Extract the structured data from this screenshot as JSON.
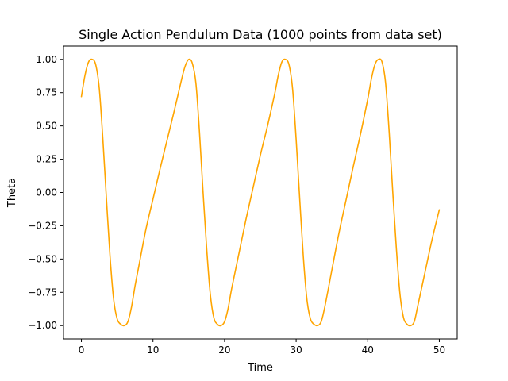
{
  "chart_data": {
    "type": "line",
    "title": "Single Action Pendulum Data (1000 points from data set)",
    "xlabel": "Time",
    "ylabel": "Theta",
    "xlim": [
      -2.5,
      52.5
    ],
    "ylim": [
      -1.1,
      1.1
    ],
    "x_ticks": [
      0,
      10,
      20,
      30,
      40,
      50
    ],
    "y_ticks": [
      -1.0,
      -0.75,
      -0.5,
      -0.25,
      0.0,
      0.25,
      0.5,
      0.75,
      1.0
    ],
    "x_tick_labels": [
      "0",
      "10",
      "20",
      "30",
      "40",
      "50"
    ],
    "y_tick_labels": [
      "−1.00",
      "−0.75",
      "−0.50",
      "−0.25",
      "0.00",
      "0.25",
      "0.50",
      "0.75",
      "1.00"
    ],
    "grid": false,
    "series": [
      {
        "color": "#ffa500",
        "x": [
          0,
          0.5,
          1.0,
          1.5,
          2.0,
          2.5,
          3.0,
          3.5,
          4.0,
          4.5,
          5.0,
          5.5,
          6.0,
          6.5,
          7.0,
          7.5,
          8.0,
          9.0,
          10.0,
          11.0,
          12.0,
          13.0,
          14.0,
          14.5,
          15.0,
          15.5,
          16.0,
          16.5,
          17.0,
          17.5,
          18.0,
          18.5,
          19.0,
          19.5,
          20.0,
          20.5,
          21.0,
          22.0,
          23.0,
          24.0,
          25.0,
          26.0,
          27.0,
          27.5,
          28.0,
          28.5,
          29.0,
          29.5,
          30.0,
          30.5,
          31.0,
          31.5,
          32.0,
          32.5,
          33.0,
          33.5,
          34.0,
          35.0,
          36.0,
          37.0,
          38.0,
          39.0,
          40.0,
          40.5,
          41.0,
          41.5,
          42.0,
          42.5,
          43.0,
          43.5,
          44.0,
          44.5,
          45.0,
          45.5,
          46.0,
          46.5,
          47.0,
          48.0,
          49.0,
          50.0
        ],
        "y": [
          0.72,
          0.88,
          0.98,
          1.0,
          0.96,
          0.78,
          0.4,
          -0.05,
          -0.48,
          -0.8,
          -0.95,
          -0.99,
          -1.0,
          -0.97,
          -0.86,
          -0.7,
          -0.56,
          -0.28,
          -0.05,
          0.18,
          0.4,
          0.62,
          0.85,
          0.95,
          1.0,
          0.97,
          0.82,
          0.45,
          0.0,
          -0.42,
          -0.76,
          -0.94,
          -0.99,
          -1.0,
          -0.97,
          -0.87,
          -0.72,
          -0.46,
          -0.2,
          0.04,
          0.28,
          0.5,
          0.74,
          0.88,
          0.98,
          1.0,
          0.96,
          0.78,
          0.4,
          -0.05,
          -0.48,
          -0.8,
          -0.95,
          -0.99,
          -1.0,
          -0.97,
          -0.86,
          -0.58,
          -0.3,
          -0.05,
          0.2,
          0.44,
          0.7,
          0.85,
          0.96,
          1.0,
          0.98,
          0.82,
          0.45,
          0.0,
          -0.42,
          -0.76,
          -0.94,
          -0.99,
          -1.0,
          -0.97,
          -0.85,
          -0.6,
          -0.35,
          -0.13
        ]
      }
    ]
  }
}
